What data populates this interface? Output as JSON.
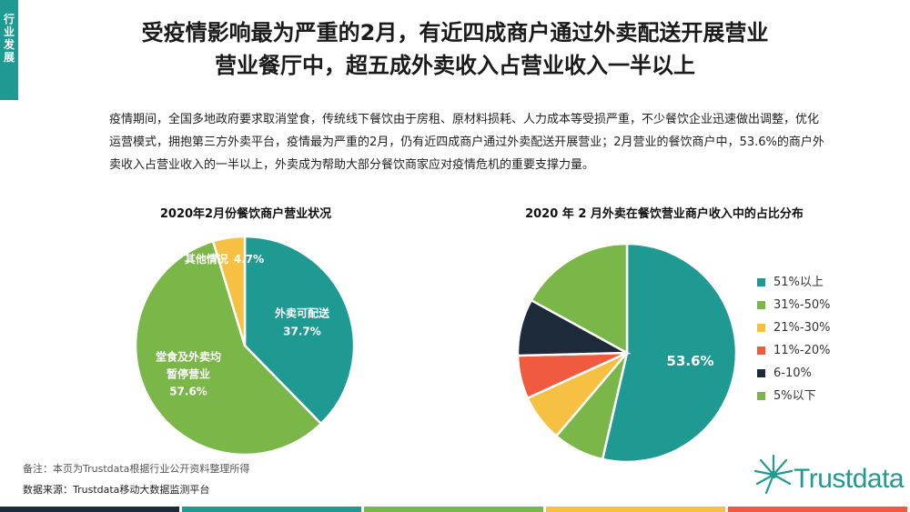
{
  "side_tab": {
    "label": "行业发展",
    "color": "#1f9a93"
  },
  "header": {
    "title_line1": "受疫情影响最为严重的2月，有近四成商户通过外卖配送开展营业",
    "title_line2": "营业餐厅中，超五成外卖收入占营业收入一半以上"
  },
  "body_text": "疫情期间，全国多地政府要求取消堂食，传统线下餐饮由于房租、原材料损耗、人力成本等受损严重，不少餐饮企业迅速做出调整，优化运营模式，拥抱第三方外卖平台，疫情最为严重的2月，仍有近四成商户通过外卖配送开展营业；2月营业的餐饮商户中，53.6%的商户外卖收入占营业收入的一半以上，外卖成为帮助大部分餐饮商家应对疫情危机的重要支撑力量。",
  "chart_data": [
    {
      "type": "pie",
      "title": "2020年2月份餐饮商户营业状况",
      "slices": [
        {
          "label": "外卖可配送",
          "value": 37.7,
          "value_label": "37.7%",
          "color": "#1f9a93"
        },
        {
          "label": "堂食及外卖均暂停营业",
          "label_line1": "堂食及外卖均",
          "label_line2": "暂停营业",
          "value": 57.6,
          "value_label": "57.6%",
          "color": "#7ab648"
        },
        {
          "label": "其他情况",
          "value": 4.7,
          "value_label": "4.7%",
          "color": "#f6c142"
        }
      ]
    },
    {
      "type": "pie",
      "title": "2020 年 2 月外卖在餐饮营业商户收入中的占比分布",
      "slices": [
        {
          "label": "51%以上",
          "value": 53.6,
          "value_label": "53.6%",
          "color": "#1f9a93"
        },
        {
          "label": "31%-50%",
          "value": 7.6,
          "color": "#7ab648"
        },
        {
          "label": "21%-30%",
          "value": 7.0,
          "color": "#f6c142"
        },
        {
          "label": "11%-20%",
          "value": 6.4,
          "color": "#f05b40"
        },
        {
          "label": "6-10%",
          "value": 8.4,
          "color": "#1c2a3a"
        },
        {
          "label": "5%以下",
          "value": 17.0,
          "color": "#7ab648"
        }
      ]
    }
  ],
  "footer": {
    "note": "备注：本页为Trustdata根据行业公开资料整理所得",
    "source": "数据来源：Trustdata移动大数据监测平台",
    "brand": "Trustdata"
  },
  "bottom_bar_colors": [
    "#1c2a3a",
    "#1f9a93",
    "#7ab648",
    "#f6c142",
    "#f05b40"
  ]
}
